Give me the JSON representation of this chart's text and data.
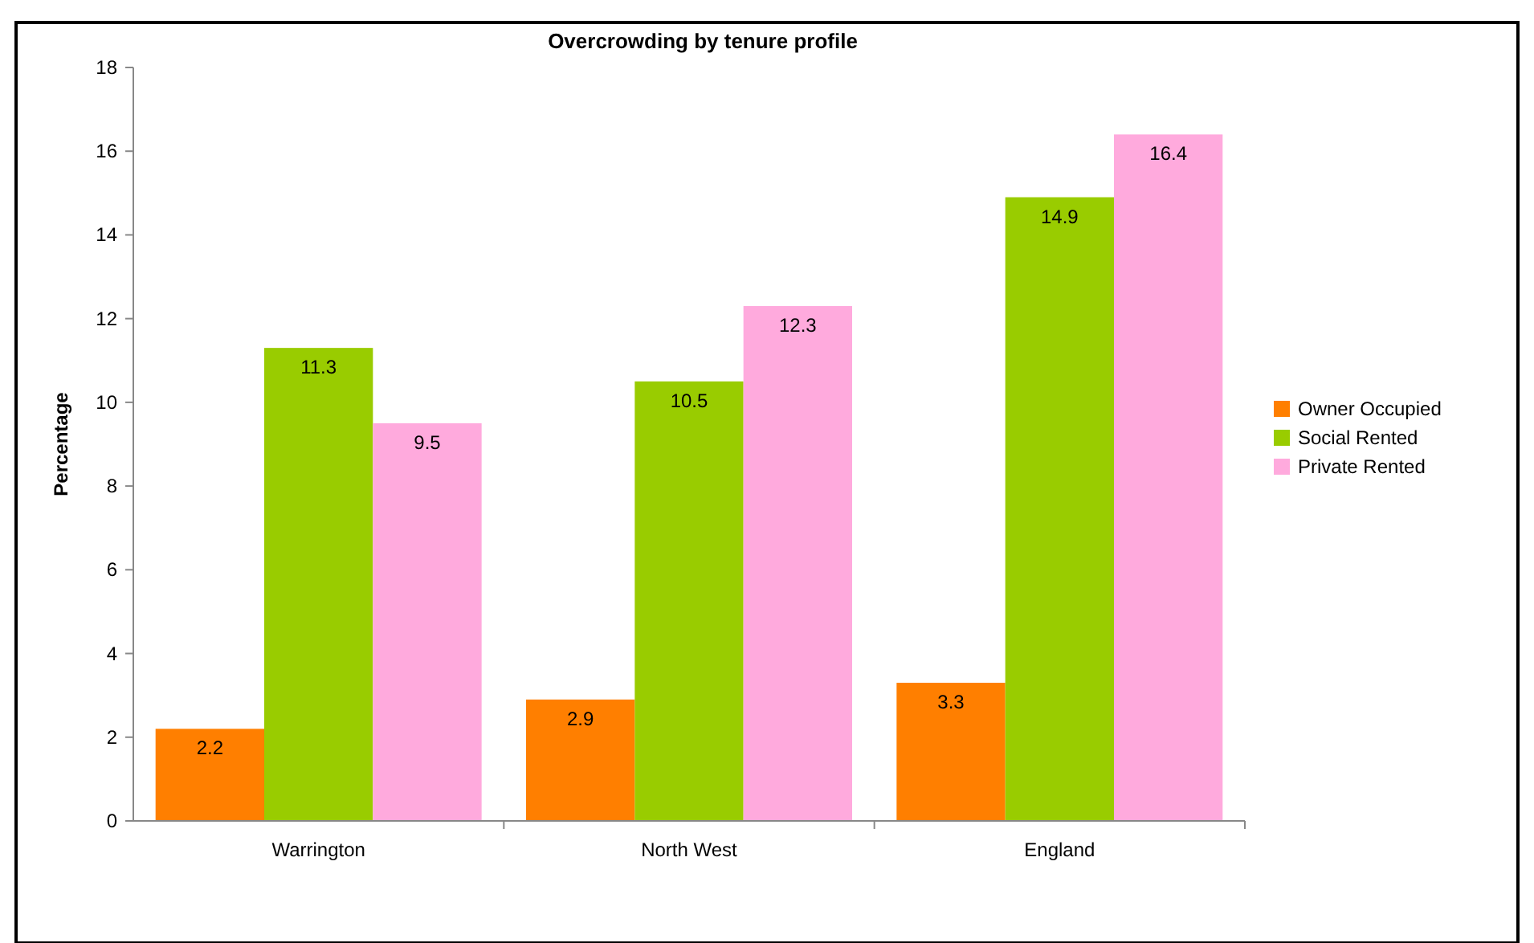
{
  "chart_data": {
    "type": "bar",
    "title": "Overcrowding by tenure profile",
    "ylabel": "Percentage",
    "categories": [
      "Warrington",
      "North West",
      "England"
    ],
    "series": [
      {
        "name": "Owner Occupied",
        "color": "#ff7f00",
        "values": [
          2.2,
          2.9,
          3.3
        ]
      },
      {
        "name": "Social Rented",
        "color": "#99cc00",
        "values": [
          11.3,
          10.5,
          14.9
        ]
      },
      {
        "name": "Private Rented",
        "color": "#ffaadd",
        "values": [
          9.5,
          12.3,
          16.4
        ]
      }
    ],
    "ylim": [
      0,
      18
    ],
    "yticks": [
      0,
      2,
      4,
      6,
      8,
      10,
      12,
      14,
      16,
      18
    ],
    "data_labels": true,
    "legend": "right",
    "grid": false
  }
}
